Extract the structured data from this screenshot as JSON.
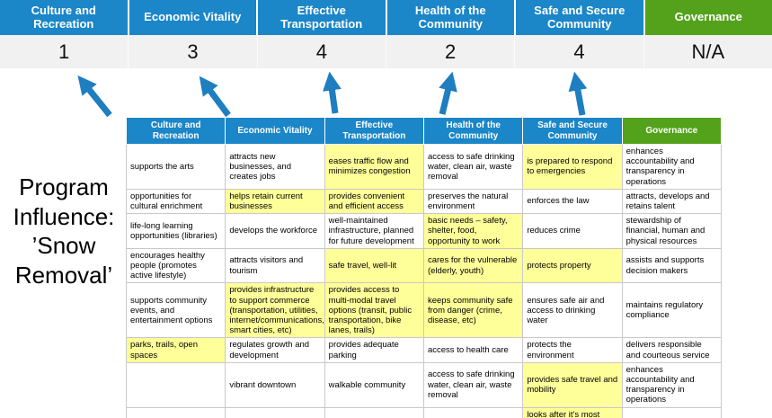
{
  "title": "Program Influence: ’Snow Removal’",
  "colors": {
    "header_blue": "#1b86c8",
    "header_green": "#54a21b",
    "highlight_yellow": "#ffff99",
    "arrow_blue": "#1e7ec0",
    "score_row_bg": "#f1f1f1"
  },
  "top_table": {
    "columns": [
      {
        "label": "Culture and Recreation",
        "score": "1",
        "theme": "blue"
      },
      {
        "label": "Economic Vitality",
        "score": "3",
        "theme": "blue"
      },
      {
        "label": "Effective Transportation",
        "score": "4",
        "theme": "blue"
      },
      {
        "label": "Health of the Community",
        "score": "2",
        "theme": "blue"
      },
      {
        "label": "Safe and Secure Community",
        "score": "4",
        "theme": "blue"
      },
      {
        "label": "Governance",
        "score": "N/A",
        "theme": "green"
      }
    ]
  },
  "matrix": {
    "headers": [
      {
        "label": "Culture and Recreation",
        "theme": "blue"
      },
      {
        "label": "Economic Vitality",
        "theme": "blue"
      },
      {
        "label": "Effective Transportation",
        "theme": "blue"
      },
      {
        "label": "Health of the Community",
        "theme": "blue"
      },
      {
        "label": "Safe and Secure Community",
        "theme": "blue"
      },
      {
        "label": "Governance",
        "theme": "green"
      }
    ],
    "rows": [
      [
        {
          "text": "supports the arts",
          "highlight": false
        },
        {
          "text": "attracts new businesses, and creates jobs",
          "highlight": false
        },
        {
          "text": "eases traffic flow and minimizes congestion",
          "highlight": true
        },
        {
          "text": "access to safe drinking water, clean air, waste removal",
          "highlight": false
        },
        {
          "text": "is prepared to respond to emergencies",
          "highlight": true
        },
        {
          "text": "enhances accountability and transparency in operations",
          "highlight": false
        }
      ],
      [
        {
          "text": "opportunities for cultural enrichment",
          "highlight": false
        },
        {
          "text": "helps retain current businesses",
          "highlight": true
        },
        {
          "text": "provides convenient and efficient access",
          "highlight": true
        },
        {
          "text": "preserves the natural environment",
          "highlight": false
        },
        {
          "text": "enforces the law",
          "highlight": false
        },
        {
          "text": "attracts, develops and retains talent",
          "highlight": false
        }
      ],
      [
        {
          "text": "life-long learning opportunities (libraries)",
          "highlight": false
        },
        {
          "text": "develops the workforce",
          "highlight": false
        },
        {
          "text": "well-maintained infrastructure, planned for future development",
          "highlight": false
        },
        {
          "text": "basic needs – safety, shelter, food, opportunity to work",
          "highlight": true
        },
        {
          "text": "reduces crime",
          "highlight": false
        },
        {
          "text": "stewardship of financial, human and physical resources",
          "highlight": false
        }
      ],
      [
        {
          "text": "encourages healthy people (promotes active lifestyle)",
          "highlight": false
        },
        {
          "text": "attracts visitors and tourism",
          "highlight": false
        },
        {
          "text": "safe travel, well-lit",
          "highlight": true
        },
        {
          "text": "cares for the vulnerable (elderly, youth)",
          "highlight": true
        },
        {
          "text": "protects property",
          "highlight": true
        },
        {
          "text": "assists and supports decision makers",
          "highlight": false
        }
      ],
      [
        {
          "text": "supports community events, and entertainment options",
          "highlight": false
        },
        {
          "text": "provides infrastructure to support commerce (transportation, utilities, internet/communications, smart cities, etc)",
          "highlight": true
        },
        {
          "text": "provides access to multi-modal travel options (transit, public transportation, bike lanes, trails)",
          "highlight": true
        },
        {
          "text": "keeps community safe from danger (crime, disease, etc)",
          "highlight": true
        },
        {
          "text": "ensures safe air and access to drinking water",
          "highlight": false
        },
        {
          "text": "maintains regulatory compliance",
          "highlight": false
        }
      ],
      [
        {
          "text": "parks, trails, open spaces",
          "highlight": true
        },
        {
          "text": "regulates growth and development",
          "highlight": false
        },
        {
          "text": "provides adequate parking",
          "highlight": false
        },
        {
          "text": "access to health care",
          "highlight": false
        },
        {
          "text": "protects the environment",
          "highlight": false
        },
        {
          "text": "delivers responsible and courteous service",
          "highlight": false
        }
      ],
      [
        {
          "text": "",
          "highlight": false
        },
        {
          "text": "vibrant downtown",
          "highlight": false
        },
        {
          "text": "walkable community",
          "highlight": false
        },
        {
          "text": "access to safe drinking water, clean air, waste removal",
          "highlight": false
        },
        {
          "text": "provides safe travel and mobility",
          "highlight": true
        },
        {
          "text": "enhances accountability and transparency in operations",
          "highlight": false
        }
      ],
      [
        {
          "text": "",
          "highlight": false
        },
        {
          "text": "",
          "highlight": false
        },
        {
          "text": "",
          "highlight": false
        },
        {
          "text": "",
          "highlight": false
        },
        {
          "text": "looks after it's most vulnerable",
          "highlight": true
        },
        {
          "text": "",
          "highlight": false
        }
      ]
    ]
  }
}
